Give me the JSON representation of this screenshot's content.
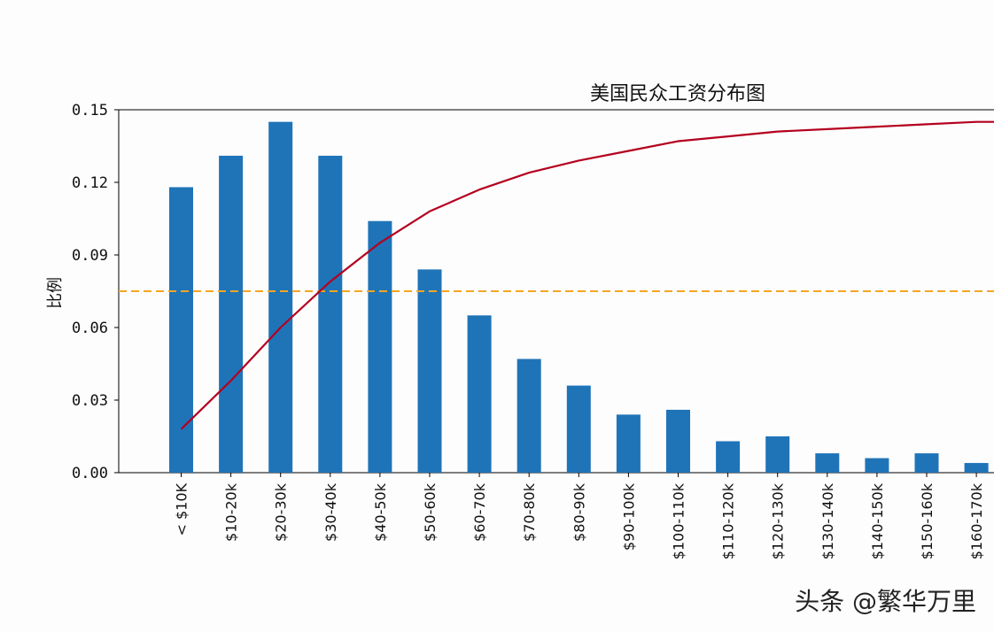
{
  "chart_data": {
    "type": "bar",
    "title": "美国民众工资分布图",
    "xlabel": "",
    "ylabel": "比例",
    "ylim": [
      0,
      0.15
    ],
    "yticks": [
      "0.00",
      "0.03",
      "0.06",
      "0.09",
      "0.12",
      "0.15"
    ],
    "categories": [
      "< $10K",
      "$10-20k",
      "$20-30k",
      "$30-40k",
      "$40-50k",
      "$50-60k",
      "$60-70k",
      "$70-80k",
      "$80-90k",
      "$90-100k",
      "$100-110k",
      "$110-120k",
      "$120-130k",
      "$130-140k",
      "$140-150k",
      "$150-160k",
      "$160-170k"
    ],
    "series": [
      {
        "type": "bar",
        "color": "#1f74b8",
        "values": [
          0.118,
          0.131,
          0.145,
          0.131,
          0.104,
          0.084,
          0.065,
          0.047,
          0.036,
          0.024,
          0.026,
          0.013,
          0.015,
          0.008,
          0.006,
          0.008,
          0.004
        ]
      },
      {
        "type": "line",
        "color": "#b4001e",
        "values": [
          0.018,
          0.038,
          0.06,
          0.079,
          0.095,
          0.108,
          0.117,
          0.124,
          0.129,
          0.133,
          0.137,
          0.139,
          0.141,
          0.142,
          0.143,
          0.144,
          0.145
        ]
      }
    ],
    "reference_line": {
      "y": 0.075,
      "style": "dashed",
      "color": "#f5a623"
    },
    "grid": false,
    "legend": "none"
  },
  "watermark": "头条 @繁华万里",
  "colors": {
    "background": "#fdfdfe",
    "axis": "#000000"
  }
}
